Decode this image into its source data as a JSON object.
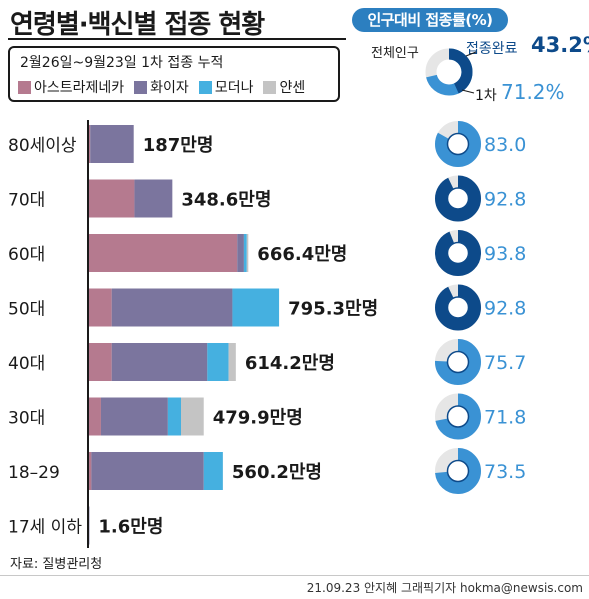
{
  "title": "연령별·백신별 접종 현황",
  "legend": {
    "subtitle": "2월26일~9월23일 1차 접종 누적",
    "items": [
      {
        "label": "아스트라제네카",
        "color": "#b57a8f"
      },
      {
        "label": "화이자",
        "color": "#7b759e"
      },
      {
        "label": "모더나",
        "color": "#45b0e0"
      },
      {
        "label": "얀센",
        "color": "#c4c4c4"
      }
    ]
  },
  "rate_panel": {
    "badge": "인구대비 접종률(%)",
    "total_label": "전체인구",
    "complete_label": "접종완료",
    "complete_value": "43.2%",
    "first_label": "1차",
    "first_value": "71.2%",
    "complete_rate": 43.2,
    "first_rate": 71.2
  },
  "chart_data": {
    "type": "bar",
    "orientation": "horizontal",
    "stacked": true,
    "unit": "만명",
    "categories": [
      "80세이상",
      "70대",
      "60대",
      "50대",
      "40대",
      "30대",
      "18–29",
      "17세 이하"
    ],
    "totals": [
      187,
      348.6,
      666.4,
      795.3,
      614.2,
      479.9,
      560.2,
      1.6
    ],
    "total_labels": [
      "187만명",
      "348.6만명",
      "666.4만명",
      "795.3만명",
      "614.2만명",
      "479.9만명",
      "560.2만명",
      "1.6만명"
    ],
    "series": [
      {
        "name": "아스트라제네카",
        "color": "#b57a8f",
        "values": [
          5,
          190,
          620,
          95,
          95,
          50,
          10,
          0
        ]
      },
      {
        "name": "화이자",
        "color": "#7b759e",
        "values": [
          182,
          158.6,
          28,
          505,
          400,
          279.9,
          470,
          1.6
        ]
      },
      {
        "name": "모더나",
        "color": "#45b0e0",
        "values": [
          0,
          0,
          12,
          195,
          89,
          55,
          80,
          0
        ]
      },
      {
        "name": "얀센",
        "color": "#c4c4c4",
        "values": [
          0,
          0,
          6.4,
          0.3,
          30.2,
          95,
          0.2,
          0
        ]
      }
    ],
    "first_dose_rate": [
      83.0,
      92.8,
      93.8,
      92.8,
      75.7,
      71.8,
      73.5,
      null
    ],
    "first_dose_labels": [
      "83.0",
      "92.8",
      "93.8",
      "92.8",
      "75.7",
      "71.8",
      "73.5",
      ""
    ]
  },
  "source": "자료: 질병관리청",
  "credit": "21.09.23  안지혜 그래픽기자  hokma@newsis.com"
}
